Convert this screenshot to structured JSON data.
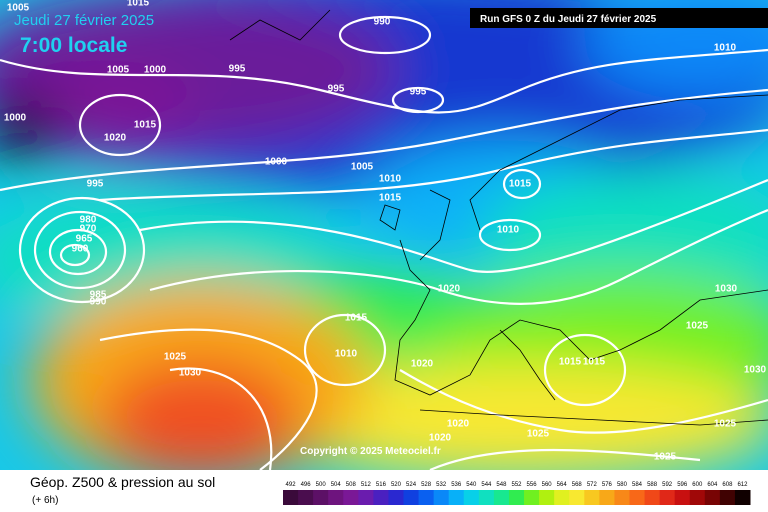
{
  "header": {
    "date": "Jeudi 27 février 2025",
    "time": "7:00 locale",
    "run": "Run GFS 0 Z du Jeudi 27 février 2025"
  },
  "map": {
    "copyright": "Copyright © 2025 Meteociel.fr",
    "isobar_labels": [
      1005,
      1015,
      990,
      1010,
      1005,
      1000,
      995,
      995,
      995,
      1000,
      1020,
      1015,
      1000,
      1005,
      1010,
      1015,
      1015,
      995,
      980,
      970,
      965,
      960,
      985,
      990,
      1010,
      1020,
      1030,
      1015,
      1025,
      1010,
      1020,
      1025,
      1030,
      1015,
      1015,
      1030,
      1020,
      1025,
      1025,
      1020,
      1025
    ]
  },
  "footer": {
    "title": "Géop. Z500 & pression au sol",
    "subtitle": "(+ 6h)",
    "colorbar": [
      {
        "label": 492,
        "color": "#3a0a3a"
      },
      {
        "label": 496,
        "color": "#4a0d4e"
      },
      {
        "label": 500,
        "color": "#5c1066"
      },
      {
        "label": 504,
        "color": "#6e147e"
      },
      {
        "label": 508,
        "color": "#7a1896"
      },
      {
        "label": 512,
        "color": "#6a1cae"
      },
      {
        "label": 516,
        "color": "#4a20c0"
      },
      {
        "label": 520,
        "color": "#2a28d0"
      },
      {
        "label": 524,
        "color": "#1040e0"
      },
      {
        "label": 528,
        "color": "#0a60f0"
      },
      {
        "label": 532,
        "color": "#0a88f8"
      },
      {
        "label": 536,
        "color": "#08b0f8"
      },
      {
        "label": 540,
        "color": "#08d0e8"
      },
      {
        "label": 544,
        "color": "#10e0c0"
      },
      {
        "label": 548,
        "color": "#18e890"
      },
      {
        "label": 552,
        "color": "#30ec50"
      },
      {
        "label": 556,
        "color": "#70f020"
      },
      {
        "label": 560,
        "color": "#b0f010"
      },
      {
        "label": 564,
        "color": "#e0f020"
      },
      {
        "label": 568,
        "color": "#f8e830"
      },
      {
        "label": 572,
        "color": "#f8c820"
      },
      {
        "label": 576,
        "color": "#f8a818"
      },
      {
        "label": 580,
        "color": "#f88818"
      },
      {
        "label": 584,
        "color": "#f86818"
      },
      {
        "label": 588,
        "color": "#f04818"
      },
      {
        "label": 592,
        "color": "#e02818"
      },
      {
        "label": 596,
        "color": "#c81010"
      },
      {
        "label": 600,
        "color": "#a00808"
      },
      {
        "label": 604,
        "color": "#780404"
      },
      {
        "label": 608,
        "color": "#400202"
      },
      {
        "label": 612,
        "color": "#100000"
      }
    ]
  }
}
